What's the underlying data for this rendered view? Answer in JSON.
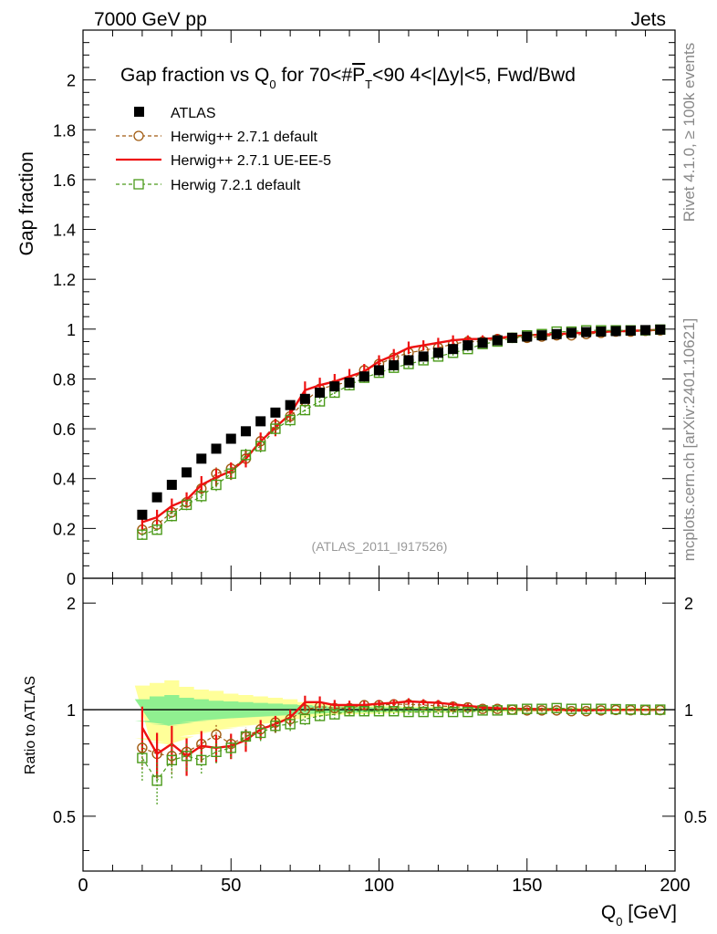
{
  "header": {
    "left_label": "7000 GeV pp",
    "right_label": "Jets"
  },
  "side_labels": {
    "rivet": "Rivet 4.1.0, ≥ 100k events",
    "mcplots": "mcplots.cern.ch [arXiv:2401.10621]"
  },
  "colors": {
    "atlas": "#000000",
    "herwigpp_default": "#a05a10",
    "herwigpp_ueee5": "#ee1111",
    "herwig7_default": "#4a9a1a",
    "band_inner": "#90f090",
    "band_outer": "#ffff99"
  },
  "chart_data": [
    {
      "panel": "main",
      "type": "scatter",
      "title_parts": {
        "prefix": "Gap fraction vs Q",
        "sub_q": "0",
        "mid": " for 70<#",
        "pt": "P",
        "sub_t": "T",
        "suffix": "<90  4<|Δy|<5, Fwd/Bwd"
      },
      "ylabel": "Gap fraction",
      "xlim": [
        0,
        200
      ],
      "ylim": [
        0,
        2.2
      ],
      "yticks": [
        0,
        0.2,
        0.4,
        0.6,
        0.8,
        1,
        1.2,
        1.4,
        1.6,
        1.8,
        2
      ],
      "ytick_labels": [
        "0",
        "0.2",
        "0.4",
        "0.6",
        "0.8",
        "1",
        "1.2",
        "1.4",
        "1.6",
        "1.8",
        "2"
      ],
      "analysis_tag": "(ATLAS_2011_I917526)",
      "x": [
        20,
        25,
        30,
        35,
        40,
        45,
        50,
        55,
        60,
        65,
        70,
        75,
        80,
        85,
        90,
        95,
        100,
        105,
        110,
        115,
        120,
        125,
        130,
        135,
        140,
        145,
        150,
        155,
        160,
        165,
        170,
        175,
        180,
        185,
        190,
        195
      ],
      "series": [
        {
          "name": "ATLAS",
          "key": "atlas",
          "style": "marker-square",
          "values": [
            0.255,
            0.325,
            0.375,
            0.425,
            0.48,
            0.52,
            0.56,
            0.59,
            0.63,
            0.665,
            0.695,
            0.72,
            0.745,
            0.77,
            0.785,
            0.81,
            0.835,
            0.855,
            0.875,
            0.89,
            0.905,
            0.92,
            0.935,
            0.945,
            0.955,
            0.965,
            0.97,
            0.975,
            0.98,
            0.985,
            0.988,
            0.99,
            0.992,
            0.994,
            0.996,
            0.998
          ]
        },
        {
          "name": "Herwig++ 2.7.1 default",
          "key": "herwigpp_default",
          "style": "dashed-circle",
          "values": [
            0.195,
            0.215,
            0.265,
            0.305,
            0.36,
            0.42,
            0.44,
            0.48,
            0.55,
            0.615,
            0.65,
            0.71,
            0.76,
            0.775,
            0.79,
            0.835,
            0.86,
            0.885,
            0.905,
            0.915,
            0.925,
            0.94,
            0.95,
            0.95,
            0.96,
            0.965,
            0.965,
            0.97,
            0.975,
            0.975,
            0.98,
            0.985,
            0.99,
            0.99,
            0.993,
            0.995
          ],
          "errors": [
            0.02,
            0.02,
            0.022,
            0.022,
            0.025,
            0.025,
            0.025,
            0.025,
            0.025,
            0.025,
            0.025,
            0.02,
            0.02,
            0.02,
            0.02,
            0.02,
            0.015,
            0.015,
            0.015,
            0.015,
            0.012,
            0.012,
            0.01,
            0.01,
            0.01,
            0.01,
            0.008,
            0.008,
            0.008,
            0.008,
            0.006,
            0.006,
            0.006,
            0.005,
            0.005,
            0.005
          ]
        },
        {
          "name": "Herwig++ 2.7.1 UE-EE-5",
          "key": "herwigpp_ueee5",
          "style": "solid-line",
          "values": [
            0.225,
            0.245,
            0.29,
            0.315,
            0.375,
            0.405,
            0.43,
            0.48,
            0.55,
            0.605,
            0.66,
            0.755,
            0.775,
            0.79,
            0.81,
            0.83,
            0.87,
            0.895,
            0.925,
            0.935,
            0.945,
            0.955,
            0.96,
            0.96,
            0.965,
            0.97,
            0.975,
            0.978,
            0.98,
            0.983,
            0.986,
            0.989,
            0.991,
            0.993,
            0.995,
            0.997
          ],
          "errors": [
            0.03,
            0.03,
            0.03,
            0.03,
            0.035,
            0.035,
            0.035,
            0.035,
            0.035,
            0.035,
            0.035,
            0.035,
            0.03,
            0.03,
            0.03,
            0.03,
            0.025,
            0.025,
            0.025,
            0.02,
            0.02,
            0.02,
            0.015,
            0.015,
            0.015,
            0.012,
            0.012,
            0.01,
            0.01,
            0.01,
            0.008,
            0.008,
            0.008,
            0.006,
            0.006,
            0.006
          ]
        },
        {
          "name": "Herwig 7.2.1 default",
          "key": "herwig7_default",
          "style": "dashed-square",
          "values": [
            0.175,
            0.195,
            0.25,
            0.295,
            0.33,
            0.375,
            0.42,
            0.495,
            0.53,
            0.6,
            0.635,
            0.675,
            0.71,
            0.745,
            0.775,
            0.805,
            0.825,
            0.845,
            0.86,
            0.875,
            0.89,
            0.905,
            0.92,
            0.94,
            0.95,
            0.965,
            0.975,
            0.98,
            0.99,
            0.99,
            0.995,
            0.995,
            0.995,
            0.995,
            0.995,
            0.998
          ],
          "errors": [
            0.02,
            0.02,
            0.022,
            0.022,
            0.025,
            0.025,
            0.025,
            0.025,
            0.025,
            0.025,
            0.025,
            0.02,
            0.02,
            0.02,
            0.02,
            0.02,
            0.015,
            0.015,
            0.015,
            0.015,
            0.012,
            0.012,
            0.01,
            0.01,
            0.01,
            0.01,
            0.008,
            0.008,
            0.008,
            0.008,
            0.006,
            0.006,
            0.006,
            0.005,
            0.005,
            0.005
          ]
        }
      ]
    },
    {
      "panel": "ratio",
      "type": "line",
      "ylabel": "Ratio to ATLAS",
      "xlabel_main": "Q",
      "xlabel_sub": "0",
      "xlabel_unit": " [GeV]",
      "xlim": [
        0,
        200
      ],
      "ylim": [
        0.35,
        2.35
      ],
      "scale": "log",
      "yticks": [
        0.5,
        1,
        2
      ],
      "ytick_labels": [
        "0.5",
        "1",
        "2"
      ],
      "xticks": [
        0,
        50,
        100,
        150,
        200
      ],
      "xtick_labels": [
        "0",
        "50",
        "100",
        "150",
        "200"
      ],
      "reference": 1,
      "x": [
        20,
        25,
        30,
        35,
        40,
        45,
        50,
        55,
        60,
        65,
        70,
        75,
        80,
        85,
        90,
        95,
        100,
        105,
        110,
        115,
        120,
        125,
        130,
        135,
        140,
        145,
        150,
        155,
        160,
        165,
        170,
        175,
        180,
        185,
        190,
        195
      ],
      "band_outer_half": [
        0.17,
        0.19,
        0.21,
        0.16,
        0.14,
        0.13,
        0.11,
        0.1,
        0.09,
        0.08,
        0.07,
        0.05,
        0.04,
        0.035,
        0.03,
        0.03,
        0.025,
        0.025,
        0.02,
        0.02,
        0.02,
        0.02,
        0.015,
        0.015,
        0.015,
        0.015,
        0.012,
        0.012,
        0.012,
        0.012,
        0.01,
        0.01,
        0.01,
        0.01,
        0.01,
        0.01
      ],
      "band_inner_half": [
        0.07,
        0.09,
        0.1,
        0.08,
        0.07,
        0.06,
        0.055,
        0.05,
        0.045,
        0.04,
        0.035,
        0.03,
        0.025,
        0.02,
        0.02,
        0.018,
        0.015,
        0.015,
        0.012,
        0.012,
        0.01,
        0.01,
        0.01,
        0.01,
        0.008,
        0.008,
        0.008,
        0.008,
        0.006,
        0.006,
        0.006,
        0.006,
        0.005,
        0.005,
        0.005,
        0.005
      ],
      "series": [
        {
          "name": "Herwig++ 2.7.1 default",
          "key": "herwigpp_default",
          "style": "dashed-circle",
          "values": [
            0.78,
            0.75,
            0.74,
            0.76,
            0.8,
            0.85,
            0.8,
            0.84,
            0.88,
            0.92,
            0.94,
            1.0,
            1.02,
            1.01,
            1.01,
            1.03,
            1.03,
            1.035,
            1.035,
            1.03,
            1.025,
            1.02,
            1.015,
            1.005,
            1.005,
            1.0,
            0.995,
            0.995,
            0.995,
            0.99,
            0.99,
            0.995,
            0.998,
            0.996,
            0.997,
            0.997
          ],
          "errors": [
            0.1,
            0.09,
            0.08,
            0.07,
            0.06,
            0.055,
            0.05,
            0.05,
            0.045,
            0.04,
            0.04,
            0.035,
            0.03,
            0.03,
            0.025,
            0.025,
            0.02,
            0.02,
            0.018,
            0.018,
            0.015,
            0.015,
            0.012,
            0.012,
            0.01,
            0.01,
            0.01,
            0.01,
            0.008,
            0.008,
            0.008,
            0.008,
            0.006,
            0.006,
            0.006,
            0.006
          ]
        },
        {
          "name": "Herwig++ 2.7.1 UE-EE-5",
          "key": "herwigpp_ueee5",
          "style": "solid-line",
          "values": [
            0.89,
            0.75,
            0.8,
            0.74,
            0.79,
            0.78,
            0.79,
            0.82,
            0.88,
            0.91,
            0.95,
            1.05,
            1.05,
            1.03,
            1.03,
            1.03,
            1.04,
            1.045,
            1.055,
            1.05,
            1.045,
            1.035,
            1.025,
            1.015,
            1.01,
            1.005,
            1.005,
            1.003,
            1.0,
            0.998,
            0.998,
            0.998,
            0.999,
            0.999,
            0.999,
            0.999
          ],
          "errors": [
            0.13,
            0.11,
            0.1,
            0.09,
            0.08,
            0.07,
            0.065,
            0.06,
            0.055,
            0.05,
            0.05,
            0.045,
            0.04,
            0.035,
            0.03,
            0.03,
            0.025,
            0.025,
            0.022,
            0.02,
            0.02,
            0.018,
            0.015,
            0.015,
            0.012,
            0.012,
            0.01,
            0.01,
            0.01,
            0.008,
            0.008,
            0.008,
            0.008,
            0.006,
            0.006,
            0.006
          ]
        },
        {
          "name": "Herwig 7.2.1 default",
          "key": "herwig7_default",
          "style": "dashed-square",
          "values": [
            0.73,
            0.63,
            0.72,
            0.74,
            0.72,
            0.76,
            0.78,
            0.84,
            0.86,
            0.9,
            0.91,
            0.94,
            0.96,
            0.97,
            0.99,
            0.99,
            0.99,
            0.99,
            0.985,
            0.985,
            0.985,
            0.985,
            0.985,
            0.995,
            0.995,
            1.0,
            1.005,
            1.005,
            1.01,
            1.005,
            1.005,
            1.005,
            1.003,
            1.001,
            0.999,
            1.0
          ],
          "errors": [
            0.1,
            0.09,
            0.08,
            0.07,
            0.06,
            0.055,
            0.05,
            0.05,
            0.045,
            0.04,
            0.04,
            0.035,
            0.03,
            0.03,
            0.025,
            0.025,
            0.02,
            0.02,
            0.018,
            0.018,
            0.015,
            0.015,
            0.012,
            0.012,
            0.01,
            0.01,
            0.01,
            0.01,
            0.008,
            0.008,
            0.008,
            0.008,
            0.006,
            0.006,
            0.006,
            0.006
          ]
        }
      ]
    }
  ]
}
